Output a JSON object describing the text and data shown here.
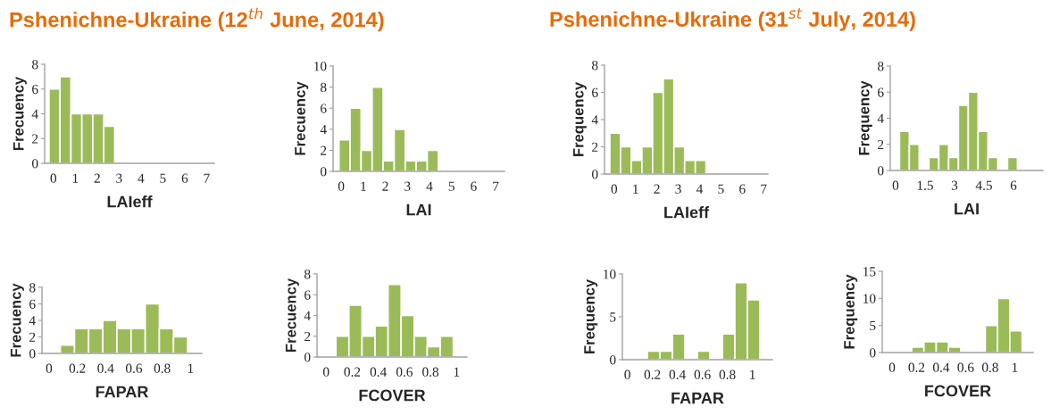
{
  "chart_data": [
    {
      "type": "histogram",
      "title": "Pshenichne-Ukraine (12$^{th}$ June, 2014)",
      "xlabel": "LAIeff",
      "ylabel": "Frecuency",
      "color": "#9bbb59",
      "bins": [
        -0.2,
        0.3,
        0.8,
        1.3,
        1.8,
        2.3,
        2.8
      ],
      "values": [
        6,
        7,
        4,
        4,
        4,
        3
      ],
      "xlim": [
        -0.4,
        7.35
      ],
      "xticks": [
        0,
        1,
        2,
        3,
        4,
        5,
        6,
        7
      ],
      "ylim": [
        0,
        8
      ],
      "yticks": [
        0,
        2,
        4,
        6,
        8
      ],
      "grid": false
    },
    {
      "type": "histogram",
      "xlabel": "LAI",
      "ylabel": "Frecuency",
      "color": "#9bbb59",
      "bins": [
        -0.1,
        0.4,
        0.9,
        1.4,
        1.9,
        2.4,
        2.9,
        3.4,
        3.9,
        4.4
      ],
      "values": [
        3,
        6,
        2,
        8,
        1,
        4,
        1,
        1,
        2
      ],
      "xlim": [
        -0.37,
        7.4
      ],
      "xticks": [
        0,
        1,
        2,
        3,
        4,
        5,
        6,
        7
      ],
      "ylim": [
        0,
        10
      ],
      "yticks": [
        0,
        2,
        4,
        6,
        8,
        10
      ],
      "grid": false
    },
    {
      "type": "histogram",
      "title": "Pshenichne-Ukraine (31$^{st}$ July, 2014)",
      "xlabel": "LAIeff",
      "ylabel": "Frequency",
      "color": "#9bbb59",
      "bins": [
        -0.2,
        0.3,
        0.8,
        1.3,
        1.8,
        2.3,
        2.8,
        3.3,
        3.8,
        4.3
      ],
      "values": [
        3,
        2,
        1,
        2,
        6,
        7,
        2,
        1,
        1
      ],
      "xlim": [
        -0.45,
        7.2
      ],
      "xticks": [
        0,
        1,
        2,
        3,
        4,
        5,
        6,
        7
      ],
      "ylim": [
        0,
        8
      ],
      "yticks": [
        0,
        2,
        4,
        6,
        8
      ],
      "grid": false
    },
    {
      "type": "histogram",
      "xlabel": "LAI",
      "ylabel": "Frequency",
      "color": "#9bbb59",
      "bins": [
        0.2,
        0.7,
        1.2,
        1.7,
        2.2,
        2.7,
        3.2,
        3.7,
        4.2,
        4.7,
        5.2,
        5.7,
        6.2
      ],
      "values": [
        3,
        2,
        0,
        1,
        2,
        1,
        5,
        6,
        3,
        1,
        0,
        1
      ],
      "xlim": [
        -0.27,
        7.5
      ],
      "xticks": [
        0,
        1.5,
        3,
        4.5,
        6
      ],
      "ylim": [
        0,
        8
      ],
      "yticks": [
        0,
        2,
        4,
        6,
        8
      ],
      "grid": false
    },
    {
      "type": "histogram",
      "xlabel": "FAPAR",
      "ylabel": "Frecuency",
      "color": "#9bbb59",
      "bins": [
        0.08,
        0.18,
        0.28,
        0.38,
        0.48,
        0.58,
        0.68,
        0.78,
        0.88,
        0.98
      ],
      "values": [
        1,
        3,
        3,
        4,
        3,
        3,
        6,
        3,
        2
      ],
      "xlim": [
        -0.05,
        1.08
      ],
      "xticks": [
        0,
        0.2,
        0.4,
        0.6,
        0.8,
        1
      ],
      "ylim": [
        0,
        8
      ],
      "yticks": [
        0,
        2,
        4,
        6,
        8
      ],
      "grid": false
    },
    {
      "type": "histogram",
      "xlabel": "FCOVER",
      "ylabel": "Frecuency",
      "color": "#9bbb59",
      "bins": [
        0.075,
        0.175,
        0.275,
        0.375,
        0.475,
        0.575,
        0.675,
        0.775,
        0.875,
        0.975
      ],
      "values": [
        2,
        5,
        2,
        3,
        7,
        4,
        2,
        1,
        2
      ],
      "xlim": [
        -0.07,
        1.08
      ],
      "xticks": [
        0,
        0.2,
        0.4,
        0.6,
        0.8,
        1
      ],
      "ylim": [
        0,
        8
      ],
      "yticks": [
        0,
        2,
        4,
        6,
        8
      ],
      "grid": false
    },
    {
      "type": "histogram",
      "xlabel": "FAPAR",
      "ylabel": "Frequency",
      "color": "#9bbb59",
      "bins": [
        0.16,
        0.26,
        0.36,
        0.46,
        0.56,
        0.66,
        0.76,
        0.86,
        0.96,
        1.06
      ],
      "values": [
        1,
        1,
        3,
        0,
        1,
        0,
        3,
        9,
        7
      ],
      "xlim": [
        -0.04,
        1.16
      ],
      "xticks": [
        0,
        0.2,
        0.4,
        0.6,
        0.8,
        1
      ],
      "ylim": [
        0,
        10
      ],
      "yticks": [
        0,
        5,
        10
      ],
      "grid": false
    },
    {
      "type": "histogram",
      "xlabel": "FCOVER",
      "ylabel": "Frequency",
      "color": "#9bbb59",
      "bins": [
        0.16,
        0.26,
        0.36,
        0.46,
        0.56,
        0.66,
        0.76,
        0.86,
        0.96,
        1.06
      ],
      "values": [
        1,
        2,
        2,
        1,
        0,
        0,
        5,
        10,
        4
      ],
      "xlim": [
        -0.08,
        1.15
      ],
      "xticks": [
        0,
        0.2,
        0.4,
        0.6,
        0.8,
        1
      ],
      "ylim": [
        0,
        15
      ],
      "yticks": [
        0,
        5,
        10,
        15
      ],
      "grid": false
    }
  ]
}
